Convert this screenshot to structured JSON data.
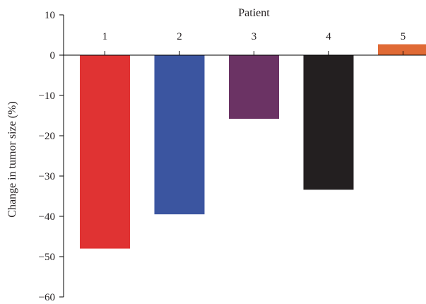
{
  "chart_data": {
    "type": "bar",
    "xlabel": "Patient",
    "ylabel": "Change in tumor size (%)",
    "categories": [
      "1",
      "2",
      "3",
      "4",
      "5"
    ],
    "values": [
      -48,
      -39.5,
      -15.8,
      -33.4,
      2.7
    ],
    "colors": [
      "#e03333",
      "#3b55a0",
      "#6b3364",
      "#231f20",
      "#e06a35"
    ],
    "ylim": [
      -60,
      10
    ],
    "yticks": [
      10,
      0,
      -10,
      -20,
      -30,
      -40,
      -50,
      -60
    ],
    "ytick_labels": [
      "10",
      "0",
      "−10",
      "−20",
      "−30",
      "−40",
      "−50",
      "−60"
    ],
    "xlabel_position": "top",
    "grid": false,
    "legend": "none"
  }
}
